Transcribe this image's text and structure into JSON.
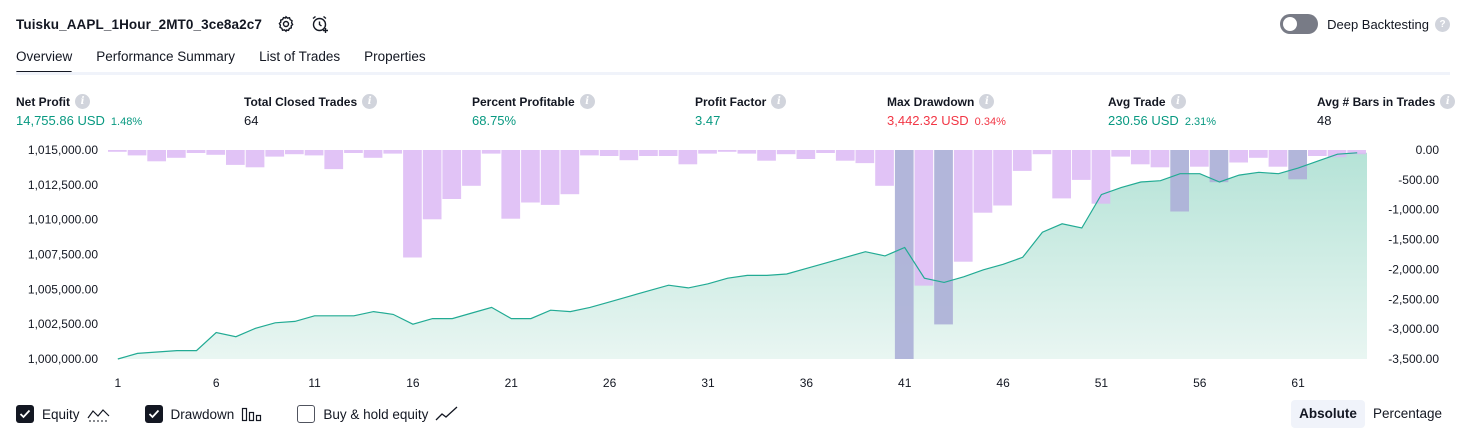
{
  "header": {
    "title": "Tuisku_AAPL_1Hour_2MT0_3ce8a2c7",
    "settings_icon": "gear-icon",
    "alert_icon": "alarm-clock-plus-icon"
  },
  "deep_backtesting": {
    "label": "Deep Backtesting",
    "enabled": false,
    "help": "?"
  },
  "tabs": [
    {
      "label": "Overview",
      "active": true
    },
    {
      "label": "Performance Summary",
      "active": false
    },
    {
      "label": "List of Trades",
      "active": false
    },
    {
      "label": "Properties",
      "active": false
    }
  ],
  "metrics": {
    "net_profit": {
      "label": "Net Profit",
      "value": "14,755.86 USD",
      "pct": "1.48%"
    },
    "total_closed_trades": {
      "label": "Total Closed Trades",
      "value": "64"
    },
    "percent_profitable": {
      "label": "Percent Profitable",
      "value": "68.75%"
    },
    "profit_factor": {
      "label": "Profit Factor",
      "value": "3.47"
    },
    "max_drawdown": {
      "label": "Max Drawdown",
      "value": "3,442.32 USD",
      "pct": "0.34%"
    },
    "avg_trade": {
      "label": "Avg Trade",
      "value": "230.56 USD",
      "pct": "2.31%"
    },
    "avg_bars": {
      "label": "Avg # Bars in Trades",
      "value": "48"
    }
  },
  "chart_data": {
    "type": "line",
    "left_axis": {
      "ticks": [
        "1,015,000.00",
        "1,012,500.00",
        "1,010,000.00",
        "1,007,500.00",
        "1,005,000.00",
        "1,002,500.00",
        "1,000,000.00"
      ],
      "range": [
        1000000,
        1015000
      ]
    },
    "right_axis": {
      "ticks": [
        "0.00",
        "-500.00",
        "-1,000.00",
        "-1,500.00",
        "-2,000.00",
        "-2,500.00",
        "-3,000.00",
        "-3,500.00"
      ],
      "range": [
        -3500,
        0
      ]
    },
    "x_ticks": [
      "1",
      "6",
      "11",
      "16",
      "21",
      "26",
      "31",
      "36",
      "41",
      "46",
      "51",
      "56",
      "61"
    ],
    "x_range": [
      1,
      64
    ],
    "equity": {
      "name": "Equity",
      "color": "#22ab94",
      "fill": "#c6e9e0",
      "values": [
        1000000,
        1000400,
        1000500,
        1000600,
        1000600,
        1001900,
        1001600,
        1002200,
        1002600,
        1002700,
        1003100,
        1003100,
        1003100,
        1003400,
        1003200,
        1002500,
        1002900,
        1002900,
        1003300,
        1003700,
        1002900,
        1002900,
        1003500,
        1003400,
        1003700,
        1004100,
        1004500,
        1004900,
        1005300,
        1005100,
        1005400,
        1005800,
        1006000,
        1006000,
        1006100,
        1006500,
        1006900,
        1007300,
        1007700,
        1007400,
        1008000,
        1005800,
        1005500,
        1005900,
        1006400,
        1006800,
        1007300,
        1009100,
        1009700,
        1009400,
        1011800,
        1012300,
        1012700,
        1012800,
        1013300,
        1013300,
        1012700,
        1013200,
        1013400,
        1013300,
        1013700,
        1014200,
        1014700,
        1014800
      ]
    },
    "drawdown": {
      "name": "Drawdown",
      "color": "#dcb8f5",
      "highlight_color": "#aeb2d8",
      "highlight_trades": [
        41,
        43,
        55,
        57,
        61
      ],
      "values": [
        -30,
        -90,
        -190,
        -130,
        -50,
        -80,
        -250,
        -290,
        -110,
        -70,
        -90,
        -320,
        -50,
        -130,
        -60,
        -1800,
        -1160,
        -820,
        -600,
        -60,
        -1150,
        -880,
        -920,
        -740,
        -90,
        -100,
        -170,
        -100,
        -100,
        -240,
        -60,
        -30,
        -60,
        -180,
        -70,
        -150,
        -50,
        -180,
        -220,
        -600,
        -3500,
        -2270,
        -2920,
        -1870,
        -1050,
        -930,
        -350,
        -70,
        -810,
        -500,
        -900,
        -110,
        -240,
        -290,
        -1030,
        -280,
        -540,
        -210,
        -130,
        -280,
        -490,
        -100,
        -120,
        -70
      ]
    },
    "buy_hold": {
      "name": "Buy & hold equity",
      "visible": false
    }
  },
  "legend": [
    {
      "label": "Equity",
      "checked": true,
      "icon": "line-area-icon"
    },
    {
      "label": "Drawdown",
      "checked": true,
      "icon": "bar-chart-icon"
    },
    {
      "label": "Buy & hold equity",
      "checked": false,
      "icon": "trend-line-icon"
    }
  ],
  "view_mode": {
    "options": [
      "Absolute",
      "Percentage"
    ],
    "selected": "Absolute"
  }
}
